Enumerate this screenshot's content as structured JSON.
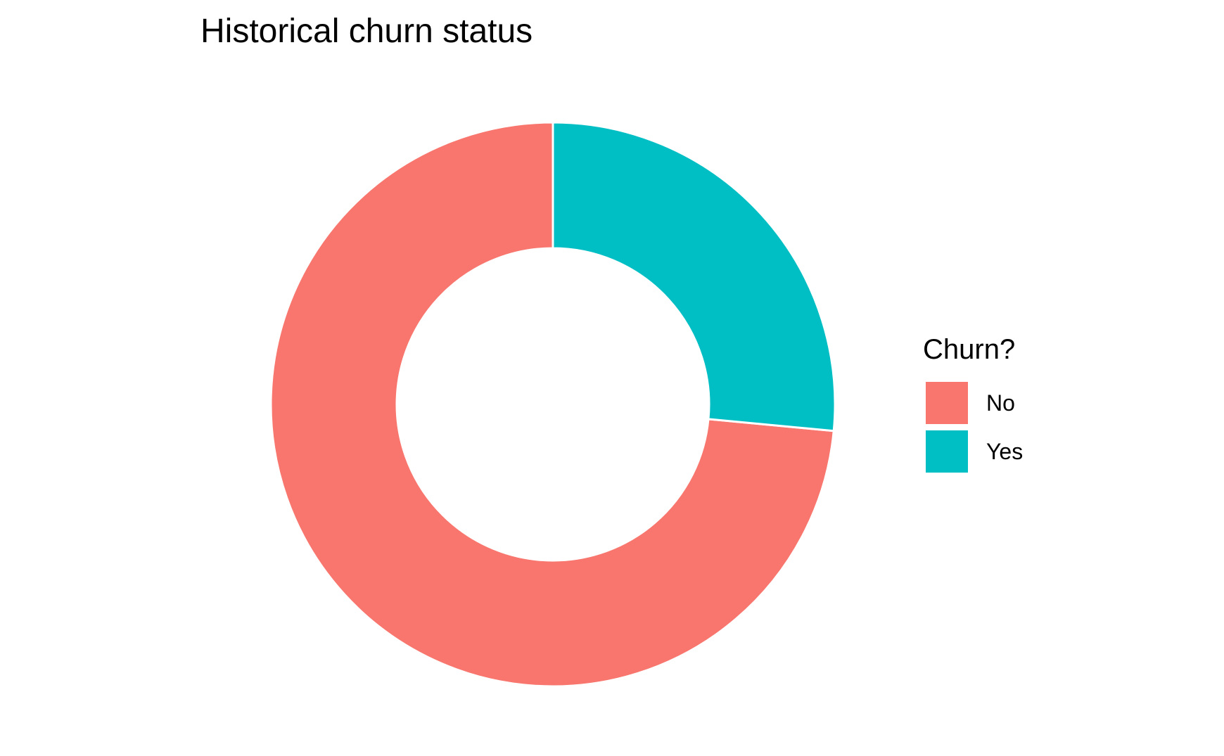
{
  "chart_data": {
    "type": "pie",
    "style": "donut",
    "title": "Historical churn status",
    "legend": {
      "title": "Churn?",
      "placement": "right"
    },
    "categories": [
      "No",
      "Yes"
    ],
    "values": [
      73.5,
      26.5
    ],
    "colors": [
      "#F8766D",
      "#00BFC4"
    ]
  }
}
